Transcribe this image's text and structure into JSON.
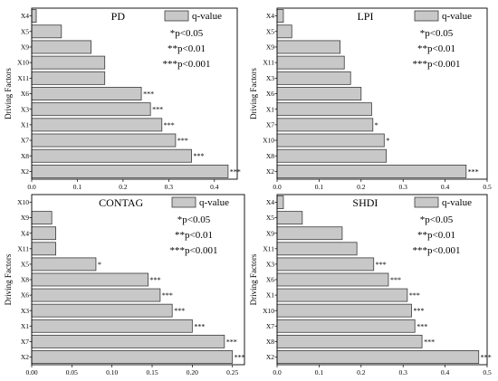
{
  "chart_data": [
    {
      "type": "bar",
      "orientation": "horizontal",
      "title": "PD",
      "ylabel": "Driving Factors",
      "categories": [
        "X2",
        "X8",
        "X7",
        "X1",
        "X3",
        "X6",
        "X11",
        "X10",
        "X9",
        "X5",
        "X4"
      ],
      "values": [
        0.43,
        0.35,
        0.315,
        0.285,
        0.26,
        0.24,
        0.16,
        0.16,
        0.13,
        0.065,
        0.01
      ],
      "significance": [
        "***",
        "***",
        "***",
        "***",
        "***",
        "***",
        "",
        "",
        "",
        "",
        ""
      ],
      "xlim": [
        0,
        0.45
      ],
      "xticks": [
        "0.0",
        "0.1",
        "0.2",
        "0.3",
        "0.4"
      ],
      "xtick_values": [
        0,
        0.1,
        0.2,
        0.3,
        0.4
      ],
      "legend": "q-value",
      "legend_position": "top-right",
      "annotations": [
        "*p<0.05",
        "**p<0.01",
        "***p<0.001"
      ]
    },
    {
      "type": "bar",
      "orientation": "horizontal",
      "title": "LPI",
      "ylabel": "Driving Factors",
      "categories": [
        "X2",
        "X8",
        "X10",
        "X7",
        "X1",
        "X6",
        "X3",
        "X11",
        "X9",
        "X5",
        "X4"
      ],
      "values": [
        0.45,
        0.26,
        0.255,
        0.228,
        0.225,
        0.2,
        0.175,
        0.16,
        0.15,
        0.035,
        0.015
      ],
      "significance": [
        "***",
        "",
        "*",
        "*",
        "",
        "",
        "",
        "",
        "",
        "",
        ""
      ],
      "xlim": [
        0,
        0.5
      ],
      "xticks": [
        "0.0",
        "0.1",
        "0.2",
        "0.3",
        "0.4",
        "0.5"
      ],
      "xtick_values": [
        0,
        0.1,
        0.2,
        0.3,
        0.4,
        0.5
      ],
      "legend": "q-value",
      "legend_position": "top-right",
      "annotations": [
        "*p<0.05",
        "**p<0.01",
        "***p<0.001"
      ]
    },
    {
      "type": "bar",
      "orientation": "horizontal",
      "title": "CONTAG",
      "ylabel": "Driving Factors",
      "categories": [
        "X2",
        "X7",
        "X1",
        "X3",
        "X6",
        "X8",
        "X5",
        "X11",
        "X4",
        "X9",
        "X10"
      ],
      "values": [
        0.25,
        0.24,
        0.2,
        0.175,
        0.16,
        0.145,
        0.08,
        0.03,
        0.03,
        0.025,
        0.0
      ],
      "significance": [
        "***",
        "***",
        "***",
        "***",
        "***",
        "***",
        "*",
        "",
        "",
        "",
        ""
      ],
      "xlim": [
        0,
        0.265
      ],
      "xticks": [
        "0.00",
        "0.05",
        "0.10",
        "0.15",
        "0.20",
        "0.25"
      ],
      "xtick_values": [
        0,
        0.05,
        0.1,
        0.15,
        0.2,
        0.25
      ],
      "legend": "q-value",
      "legend_position": "top-right",
      "annotations": [
        "*p<0.05",
        "**p<0.01",
        "***p<0.001"
      ]
    },
    {
      "type": "bar",
      "orientation": "horizontal",
      "title": "SHDI",
      "ylabel": "Driving Factors",
      "categories": [
        "X2",
        "X8",
        "X7",
        "X10",
        "X1",
        "X6",
        "X3",
        "X11",
        "X9",
        "X5",
        "X4"
      ],
      "values": [
        0.48,
        0.345,
        0.328,
        0.32,
        0.31,
        0.265,
        0.23,
        0.19,
        0.155,
        0.06,
        0.015
      ],
      "significance": [
        "***",
        "***",
        "***",
        "***",
        "***",
        "***",
        "***",
        "",
        "",
        "",
        ""
      ],
      "xlim": [
        0,
        0.5
      ],
      "xticks": [
        "0.0",
        "0.1",
        "0.2",
        "0.3",
        "0.4",
        "0.5"
      ],
      "xtick_values": [
        0,
        0.1,
        0.2,
        0.3,
        0.4,
        0.5
      ],
      "legend": "q-value",
      "legend_position": "top-right",
      "annotations": [
        "*p<0.05",
        "**p<0.01",
        "***p<0.001"
      ]
    }
  ],
  "colors": {
    "bar_fill": "#c8c8c8",
    "bar_stroke": "#3a3a3a",
    "axis": "#000000",
    "background": "#ffffff"
  }
}
